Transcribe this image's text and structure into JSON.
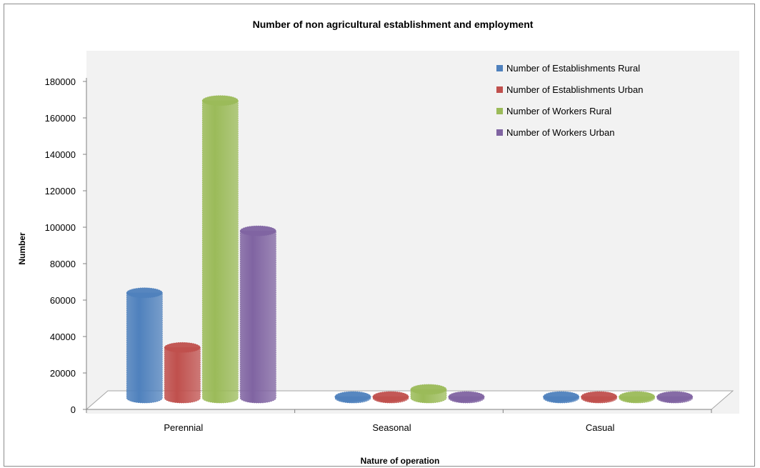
{
  "chart_data": {
    "type": "bar",
    "title": "Number of non agricultural establishment and employment",
    "xlabel": "Nature of operation",
    "ylabel": "Number",
    "categories": [
      "Perennial",
      "Seasonal",
      "Casual"
    ],
    "ylim": [
      0,
      180000
    ],
    "yticks": [
      0,
      20000,
      40000,
      60000,
      80000,
      100000,
      120000,
      140000,
      160000,
      180000
    ],
    "series": [
      {
        "name": "Number of Establishments Rural",
        "color": "#4f81bd",
        "values": [
          64000,
          5000,
          3500
        ]
      },
      {
        "name": "Number of Establishments Urban",
        "color": "#c0504d",
        "values": [
          34000,
          2500,
          2000
        ]
      },
      {
        "name": "Number of Workers Rural",
        "color": "#9bbb59",
        "values": [
          169500,
          11000,
          5000
        ]
      },
      {
        "name": "Number of Workers Urban",
        "color": "#8064a2",
        "values": [
          98000,
          4000,
          3000
        ]
      }
    ],
    "legend_position": "top-right",
    "style": "3d-cylinder",
    "grid": false
  }
}
